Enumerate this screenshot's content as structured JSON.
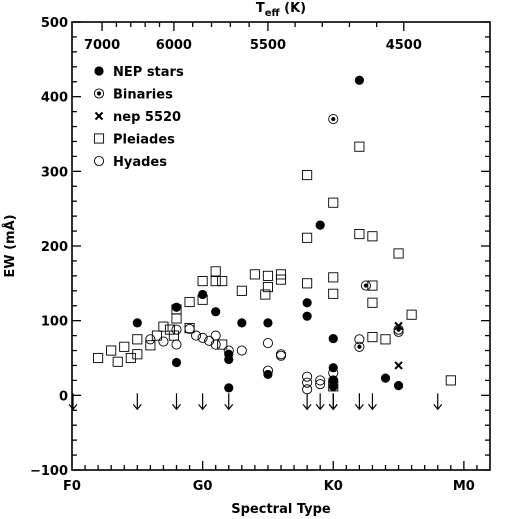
{
  "chart_data": {
    "type": "scatter",
    "xlabel": "Spectral Type",
    "ylabel": "EW (mÅ)",
    "top_axis_label": "T",
    "top_axis_label_sub": "eff",
    "top_axis_label_unit": " (K)",
    "xlim": [
      0,
      32
    ],
    "ylim": [
      -100,
      500
    ],
    "y_ticks": [
      -100,
      0,
      100,
      200,
      300,
      400,
      500
    ],
    "x_ticks": [
      {
        "x": 0,
        "label": "F0"
      },
      {
        "x": 10,
        "label": "G0"
      },
      {
        "x": 20,
        "label": "K0"
      },
      {
        "x": 30,
        "label": "M0"
      }
    ],
    "top_ticks": [
      {
        "x": 2.3,
        "label": "7000"
      },
      {
        "x": 7.8,
        "label": "6000"
      },
      {
        "x": 15.0,
        "label": "5500"
      },
      {
        "x": 25.4,
        "label": "4500"
      }
    ],
    "legend": {
      "position": "top-left",
      "entries": [
        {
          "marker": "filled-circle",
          "label": "NEP stars"
        },
        {
          "marker": "dotted-circle",
          "label": "Binaries"
        },
        {
          "marker": "cross",
          "label": "nep 5520"
        },
        {
          "marker": "open-square",
          "label": "Pleiades"
        },
        {
          "marker": "open-circle",
          "label": "Hyades"
        }
      ]
    },
    "series": [
      {
        "name": "NEP stars",
        "marker": "filled-circle",
        "x": [
          5.0,
          8.0,
          8.0,
          10.0,
          11.0,
          12.0,
          12.0,
          12.0,
          13.0,
          15.0,
          15.0,
          18.0,
          18.0,
          19.0,
          20.0,
          20.0,
          20.0,
          20.0,
          22.0,
          24.0,
          25.0
        ],
        "y": [
          97,
          118,
          44,
          135,
          112,
          55,
          10,
          48,
          97,
          28,
          97,
          124,
          106,
          228,
          76,
          37,
          20,
          12,
          422,
          23,
          13
        ]
      },
      {
        "name": "Binaries",
        "marker": "dotted-circle",
        "x": [
          20.0,
          22.0,
          22.5,
          25.0
        ],
        "y": [
          370,
          65,
          147,
          88
        ]
      },
      {
        "name": "nep 5520",
        "marker": "cross",
        "x": [
          25.0,
          25.0
        ],
        "y": [
          93,
          40
        ]
      },
      {
        "name": "Pleiades",
        "marker": "open-square",
        "x": [
          2.0,
          3.0,
          3.5,
          4.0,
          4.5,
          5.0,
          5.0,
          6.0,
          6.5,
          7.0,
          7.5,
          7.8,
          8.0,
          8.0,
          9.0,
          9.0,
          10.0,
          10.0,
          11.0,
          11.0,
          11.5,
          11.5,
          13.0,
          14.0,
          14.8,
          15.0,
          15.0,
          16.0,
          16.0,
          18.0,
          18.0,
          18.0,
          20.0,
          20.0,
          20.0,
          20.0,
          22.0,
          22.0,
          23.0,
          23.0,
          23.0,
          23.0,
          24.0,
          25.0,
          26.0,
          29.0
        ],
        "y": [
          50,
          60,
          45,
          65,
          50,
          55,
          75,
          67,
          80,
          92,
          88,
          80,
          115,
          103,
          125,
          90,
          153,
          128,
          166,
          153,
          153,
          68,
          140,
          162,
          135,
          160,
          145,
          162,
          155,
          295,
          211,
          150,
          258,
          158,
          136,
          12,
          333,
          216,
          213,
          147,
          124,
          78,
          75,
          190,
          108,
          20
        ]
      },
      {
        "name": "Hyades",
        "marker": "open-circle",
        "x": [
          6.0,
          7.0,
          8.0,
          8.0,
          9.0,
          9.5,
          10.0,
          10.5,
          11.0,
          11.0,
          12.0,
          13.0,
          15.0,
          15.0,
          16.0,
          16.0,
          18.0,
          18.0,
          18.0,
          19.0,
          19.0,
          20.0,
          20.0,
          22.0,
          25.0
        ],
        "y": [
          75,
          72,
          88,
          68,
          89,
          80,
          77,
          73,
          80,
          68,
          60,
          60,
          70,
          33,
          55,
          53,
          25,
          17,
          8,
          20,
          15,
          30,
          20,
          75,
          85
        ]
      }
    ],
    "upper_limits": {
      "marker": "down-arrow",
      "x": [
        -0.5,
        5.0,
        8.0,
        10.0,
        12.0,
        18.0,
        19.0,
        20.0,
        20.0,
        22.0,
        23.0,
        28.0
      ]
    }
  }
}
